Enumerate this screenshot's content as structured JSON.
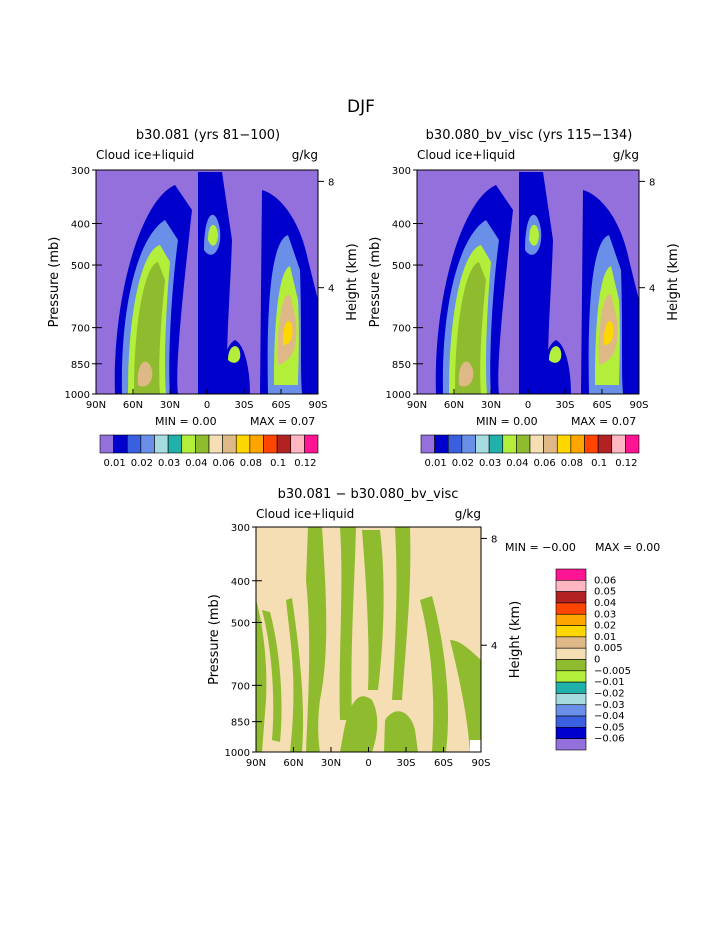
{
  "page_title": "DJF",
  "palette": [
    "#9370db",
    "#0000cd",
    "#3a5fe0",
    "#6a8fe8",
    "#a6dce0",
    "#20b2aa",
    "#b3ee3a",
    "#8fbc2f",
    "#f5deb3",
    "#deb887",
    "#ffd700",
    "#ffa500",
    "#ff4500",
    "#b22222",
    "#ffb6c1",
    "#ff1493"
  ],
  "chart_data": [
    {
      "type": "heatmap",
      "title": "b30.081 (yrs 81−100)",
      "variable": "Cloud ice+liquid",
      "units": "g/kg",
      "ylabel": "Pressure (mb)",
      "ylabel_right": "Height (km)",
      "x_ticks": [
        "90N",
        "60N",
        "30N",
        "0",
        "30S",
        "60S",
        "90S"
      ],
      "y_ticks": [
        "300",
        "400",
        "500",
        "700",
        "850",
        "1000"
      ],
      "y_ticks_right": [
        "8",
        "4"
      ],
      "ylim": [
        1000,
        300
      ],
      "min_text": "MIN =",
      "min_value": "0.00",
      "max_text": "MAX =",
      "max_value": "0.07",
      "colorbar_labels": [
        "0.01",
        "0.02",
        "0.03",
        "0.04",
        "0.06",
        "0.08",
        "0.1",
        "0.12"
      ]
    },
    {
      "type": "heatmap",
      "title": "b30.080_bv_visc (yrs 115−134)",
      "variable": "Cloud ice+liquid",
      "units": "g/kg",
      "ylabel": "Pressure (mb)",
      "ylabel_right": "Height (km)",
      "x_ticks": [
        "90N",
        "60N",
        "30N",
        "0",
        "30S",
        "60S",
        "90S"
      ],
      "y_ticks": [
        "300",
        "400",
        "500",
        "700",
        "850",
        "1000"
      ],
      "y_ticks_right": [
        "8",
        "4"
      ],
      "ylim": [
        1000,
        300
      ],
      "min_text": "MIN =",
      "min_value": "0.00",
      "max_text": "MAX =",
      "max_value": "0.07",
      "colorbar_labels": [
        "0.01",
        "0.02",
        "0.03",
        "0.04",
        "0.06",
        "0.08",
        "0.1",
        "0.12"
      ]
    },
    {
      "type": "heatmap",
      "title": "b30.081 − b30.080_bv_visc",
      "variable": "Cloud ice+liquid",
      "units": "g/kg",
      "ylabel": "Pressure (mb)",
      "ylabel_right": "Height (km)",
      "x_ticks": [
        "90N",
        "60N",
        "30N",
        "0",
        "30S",
        "60S",
        "90S"
      ],
      "y_ticks": [
        "300",
        "400",
        "500",
        "700",
        "850",
        "1000"
      ],
      "y_ticks_right": [
        "8",
        "4"
      ],
      "ylim": [
        1000,
        300
      ],
      "min_text": "MIN =",
      "min_value": "−0.00",
      "max_text": "MAX =",
      "max_value": "0.00",
      "colorbar_labels": [
        "0.06",
        "0.05",
        "0.04",
        "0.03",
        "0.02",
        "0.01",
        "0.005",
        "0",
        "−0.005",
        "−0.01",
        "−0.02",
        "−0.03",
        "−0.04",
        "−0.05",
        "−0.06"
      ]
    }
  ]
}
